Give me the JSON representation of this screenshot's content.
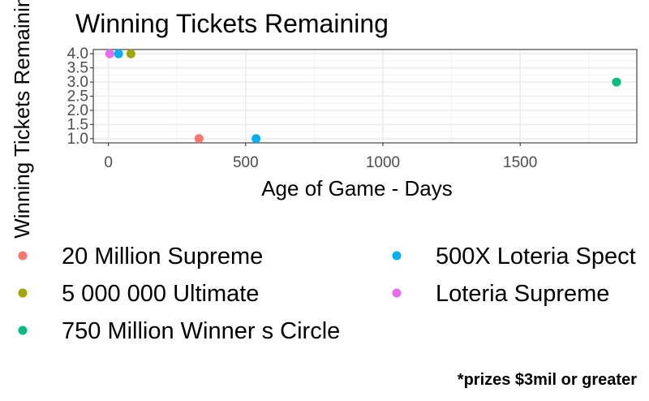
{
  "chart_data": {
    "type": "scatter",
    "title": "Winning Tickets Remaining",
    "xlabel": "Age of Game - Days",
    "ylabel": "Winning Tickets Remaining",
    "caption": "*prizes $3mil or greater",
    "xlim": [
      -55,
      1925
    ],
    "ylim": [
      0.85,
      4.15
    ],
    "x_ticks": [
      0,
      500,
      1000,
      1500
    ],
    "x_tick_labels": [
      "0",
      "500",
      "1000",
      "1500"
    ],
    "y_ticks": [
      1.0,
      1.5,
      2.0,
      2.5,
      3.0,
      3.5,
      4.0
    ],
    "y_tick_labels": [
      "1.0",
      "1.5",
      "2.0",
      "2.5",
      "3.0",
      "3.5",
      "4.0"
    ],
    "grid": true,
    "legend_position": "bottom",
    "series": [
      {
        "name": "20 Million Supreme",
        "color": "#F8766D",
        "points": [
          {
            "x": 330,
            "y": 1
          }
        ]
      },
      {
        "name": "5 000 000 Ultimate",
        "color": "#A3A500",
        "points": [
          {
            "x": 82,
            "y": 4
          }
        ]
      },
      {
        "name": "750 Million Winner s Circle",
        "color": "#00BF7D",
        "points": [
          {
            "x": 1851,
            "y": 3
          }
        ]
      },
      {
        "name": "500X Loteria Spect",
        "color": "#00B0F6",
        "points": [
          {
            "x": 538,
            "y": 1
          },
          {
            "x": 37,
            "y": 4
          }
        ]
      },
      {
        "name": "Loteria Supreme",
        "color": "#E76BF3",
        "points": [
          {
            "x": 5,
            "y": 4
          }
        ]
      }
    ]
  }
}
